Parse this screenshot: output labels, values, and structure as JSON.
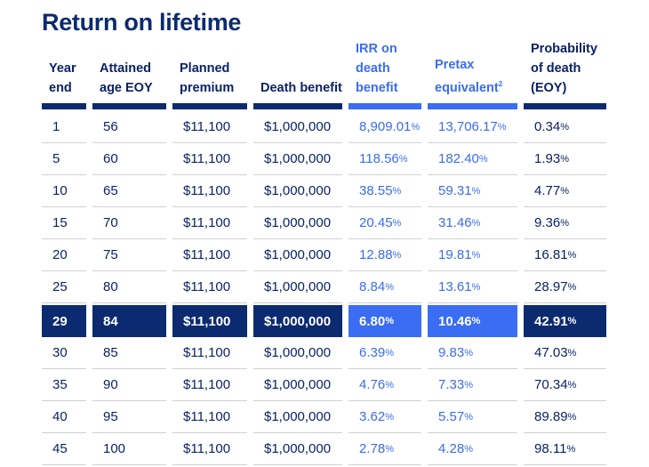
{
  "title": "Return on lifetime",
  "colors": {
    "navy": "#0b2a6f",
    "accent": "#3a6cf4"
  },
  "headers": [
    "Year end",
    "Attained age EOY",
    "Planned premium",
    "Death benefit",
    "IRR on death benefit",
    "Pretax equivalent",
    "Probability of death (EOY)"
  ],
  "header_superscript": "2",
  "highlight_year": "29",
  "rows": [
    [
      "1",
      "56",
      "$11,100",
      "$1,000,000",
      "8,909.01",
      "13,706.17",
      "0.34"
    ],
    [
      "5",
      "60",
      "$11,100",
      "$1,000,000",
      "118.56",
      "182.40",
      "1.93"
    ],
    [
      "10",
      "65",
      "$11,100",
      "$1,000,000",
      "38.55",
      "59.31",
      "4.77"
    ],
    [
      "15",
      "70",
      "$11,100",
      "$1,000,000",
      "20.45",
      "31.46",
      "9.36"
    ],
    [
      "20",
      "75",
      "$11,100",
      "$1,000,000",
      "12.88",
      "19.81",
      "16.81"
    ],
    [
      "25",
      "80",
      "$11,100",
      "$1,000,000",
      "8.84",
      "13.61",
      "28.97"
    ],
    [
      "29",
      "84",
      "$11,100",
      "$1,000,000",
      "6.80",
      "10.46",
      "42.91"
    ],
    [
      "30",
      "85",
      "$11,100",
      "$1,000,000",
      "6.39",
      "9.83",
      "47.03"
    ],
    [
      "35",
      "90",
      "$11,100",
      "$1,000,000",
      "4.76",
      "7.33",
      "70.34"
    ],
    [
      "40",
      "95",
      "$11,100",
      "$1,000,000",
      "3.62",
      "5.57",
      "89.89"
    ],
    [
      "45",
      "100",
      "$11,100",
      "$1,000,000",
      "2.78",
      "4.28",
      "98.11"
    ]
  ],
  "percent_sign": "%"
}
